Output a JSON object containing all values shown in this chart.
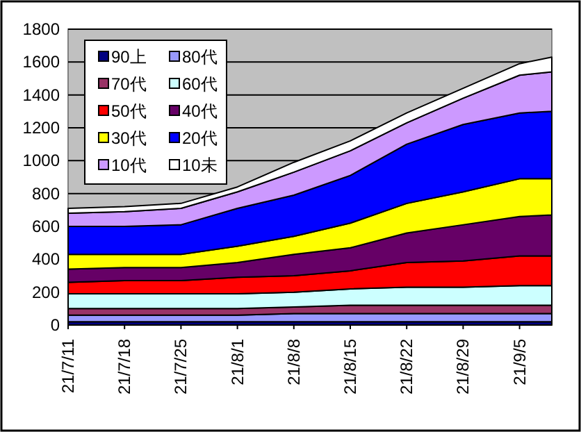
{
  "chart_data": {
    "type": "area",
    "stacked": true,
    "grid": "y",
    "legend": "top left",
    "x": [
      "--07-11",
      "--07-18",
      "--07-25",
      "--08-01",
      "--08-08",
      "--08-15",
      "--08-22",
      "--08-29",
      "--09-05",
      "--09-09"
    ],
    "xlim": [
      "--07-11",
      "--09-09"
    ],
    "xticks": [
      {
        "value": "--07-11",
        "label": "21/7/11"
      },
      {
        "value": "--07-18",
        "label": "21/7/18"
      },
      {
        "value": "--07-25",
        "label": "21/7/25"
      },
      {
        "value": "--08-01",
        "label": "21/8/1"
      },
      {
        "value": "--08-08",
        "label": "21/8/8"
      },
      {
        "value": "--08-15",
        "label": "21/8/15"
      },
      {
        "value": "--08-22",
        "label": "21/8/22"
      },
      {
        "value": "--08-29",
        "label": "21/8/29"
      },
      {
        "value": "--09-05",
        "label": "21/9/5"
      }
    ],
    "ylim": [
      0,
      1800
    ],
    "yticks": [
      0,
      200,
      400,
      600,
      800,
      1000,
      1200,
      1400,
      1600,
      1800
    ],
    "series": [
      {
        "name": "90上",
        "color": "#000080",
        "values": [
          20,
          20,
          20,
          20,
          20,
          20,
          20,
          20,
          20,
          20
        ]
      },
      {
        "name": "80代",
        "color": "#9999ff",
        "values": [
          40,
          40,
          40,
          40,
          50,
          50,
          50,
          50,
          50,
          50
        ]
      },
      {
        "name": "70代",
        "color": "#993366",
        "values": [
          40,
          40,
          40,
          40,
          40,
          50,
          50,
          50,
          50,
          50
        ]
      },
      {
        "name": "60代",
        "color": "#ccffff",
        "values": [
          90,
          90,
          90,
          90,
          90,
          100,
          110,
          110,
          120,
          120
        ]
      },
      {
        "name": "50代",
        "color": "#ff0000",
        "values": [
          70,
          80,
          80,
          100,
          100,
          110,
          150,
          160,
          180,
          180
        ]
      },
      {
        "name": "40代",
        "color": "#660066",
        "values": [
          80,
          80,
          80,
          90,
          130,
          140,
          180,
          220,
          240,
          250
        ]
      },
      {
        "name": "30代",
        "color": "#ffff00",
        "values": [
          90,
          80,
          80,
          100,
          110,
          150,
          180,
          200,
          230,
          220
        ]
      },
      {
        "name": "20代",
        "color": "#0000ff",
        "values": [
          170,
          170,
          180,
          230,
          250,
          290,
          360,
          410,
          400,
          410
        ]
      },
      {
        "name": "10代",
        "color": "#cc99ff",
        "values": [
          80,
          90,
          100,
          100,
          140,
          150,
          130,
          160,
          230,
          240
        ]
      },
      {
        "name": "10未",
        "color": "#ffffff",
        "values": [
          30,
          30,
          30,
          30,
          60,
          60,
          60,
          60,
          70,
          90
        ]
      }
    ]
  }
}
